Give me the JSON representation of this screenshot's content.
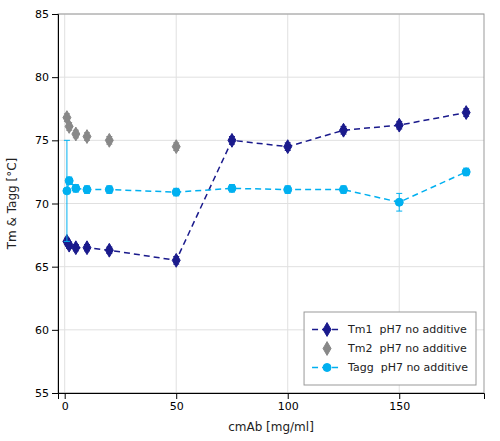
{
  "chart_data": {
    "type": "line",
    "xlabel": "cmAb [mg/ml]",
    "ylabel": "Tm & Tagg [°C]",
    "xlim": [
      -3,
      188
    ],
    "ylim": [
      55,
      85
    ],
    "xticks": [
      0,
      50,
      100,
      150
    ],
    "yticks": [
      55,
      60,
      65,
      70,
      75,
      80,
      85
    ],
    "grid": true,
    "legend": "lower right",
    "series": [
      {
        "name": "Tm1  pH7 no additive",
        "color": "#1a1a8c",
        "marker": "diamond",
        "line_style": "dashed",
        "x": [
          1,
          2,
          5,
          10,
          20,
          50,
          75,
          100,
          125,
          150,
          180
        ],
        "values": [
          67.0,
          66.7,
          66.5,
          66.5,
          66.3,
          65.5,
          75.0,
          74.5,
          75.8,
          76.2,
          77.2
        ],
        "errors": [
          0.25,
          0.25,
          0.25,
          0.25,
          0.25,
          0.3,
          0.3,
          0.3,
          0.3,
          0.3,
          0.3
        ]
      },
      {
        "name": "Tm2  pH7 no additive",
        "color": "#888888",
        "marker": "diamond",
        "line_style": "none",
        "x": [
          1,
          2,
          5,
          10,
          20,
          50
        ],
        "values": [
          76.8,
          76.1,
          75.5,
          75.3,
          75.0,
          74.5
        ],
        "errors": [
          0.3,
          0.3,
          0.3,
          0.3,
          0.3,
          0.3
        ]
      },
      {
        "name": "Tagg  pH7 no additive",
        "color": "#00b0f0",
        "marker": "circle",
        "line_style": "dashed",
        "x": [
          1,
          2,
          5,
          10,
          20,
          50,
          75,
          100,
          125,
          150,
          180
        ],
        "values": [
          71.0,
          71.8,
          71.2,
          71.1,
          71.1,
          70.9,
          71.2,
          71.1,
          71.1,
          70.1,
          72.5
        ],
        "errors": [
          4.0,
          0.3,
          0.3,
          0.3,
          0.3,
          0.3,
          0.3,
          0.3,
          0.3,
          0.7,
          0.3
        ]
      }
    ]
  }
}
